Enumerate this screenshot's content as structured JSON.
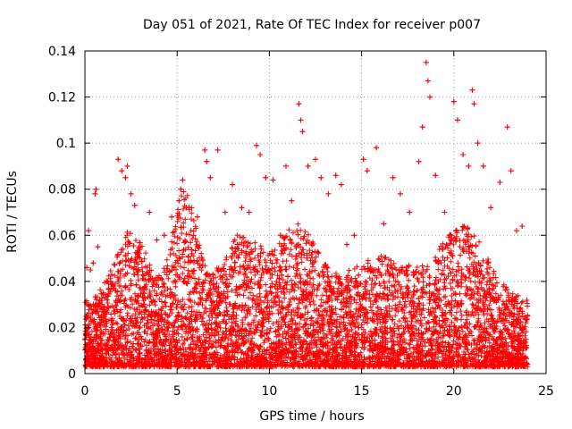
{
  "chart_data": {
    "type": "scatter",
    "title": "Day 051 of 2021, Rate Of TEC Index for receiver p007",
    "xlabel": "GPS time / hours",
    "ylabel": "ROTI / TECUs",
    "xlim": [
      0,
      25
    ],
    "ylim": [
      0,
      0.14
    ],
    "xticks": [
      0,
      5,
      10,
      15,
      20,
      25
    ],
    "xtick_labels": [
      "0",
      "5",
      "10",
      "15",
      "20",
      "25"
    ],
    "yticks": [
      0,
      0.02,
      0.04,
      0.06,
      0.08,
      0.1,
      0.12,
      0.14
    ],
    "ytick_labels": [
      "0",
      "0.02",
      "0.04",
      "0.06",
      "0.08",
      "0.1",
      "0.12",
      "0.14"
    ],
    "grid": true,
    "marker": "+",
    "series": [
      {
        "name": "ROTI",
        "color": "#ff0000",
        "points": [
          [
            0.1,
            0.046
          ],
          [
            0.2,
            0.062
          ],
          [
            0.3,
            0.045
          ],
          [
            0.45,
            0.048
          ],
          [
            0.55,
            0.078
          ],
          [
            0.6,
            0.08
          ],
          [
            0.7,
            0.055
          ],
          [
            1.0,
            0.035
          ],
          [
            1.4,
            0.04
          ],
          [
            1.8,
            0.093
          ],
          [
            2.0,
            0.088
          ],
          [
            2.2,
            0.085
          ],
          [
            2.3,
            0.09
          ],
          [
            2.5,
            0.078
          ],
          [
            2.7,
            0.073
          ],
          [
            3.0,
            0.055
          ],
          [
            3.5,
            0.07
          ],
          [
            3.9,
            0.058
          ],
          [
            4.3,
            0.06
          ],
          [
            4.7,
            0.068
          ],
          [
            5.1,
            0.075
          ],
          [
            5.2,
            0.08
          ],
          [
            5.3,
            0.084
          ],
          [
            5.5,
            0.072
          ],
          [
            5.8,
            0.052
          ],
          [
            6.1,
            0.068
          ],
          [
            6.5,
            0.097
          ],
          [
            6.6,
            0.092
          ],
          [
            6.8,
            0.085
          ],
          [
            7.2,
            0.097
          ],
          [
            7.6,
            0.07
          ],
          [
            8.0,
            0.082
          ],
          [
            8.5,
            0.072
          ],
          [
            8.9,
            0.07
          ],
          [
            9.3,
            0.099
          ],
          [
            9.5,
            0.095
          ],
          [
            9.8,
            0.085
          ],
          [
            10.2,
            0.084
          ],
          [
            10.6,
            0.06
          ],
          [
            10.9,
            0.09
          ],
          [
            11.2,
            0.075
          ],
          [
            11.6,
            0.117
          ],
          [
            11.7,
            0.11
          ],
          [
            11.8,
            0.105
          ],
          [
            12.1,
            0.09
          ],
          [
            12.5,
            0.093
          ],
          [
            12.8,
            0.085
          ],
          [
            13.2,
            0.078
          ],
          [
            13.6,
            0.086
          ],
          [
            13.9,
            0.082
          ],
          [
            14.2,
            0.056
          ],
          [
            14.6,
            0.06
          ],
          [
            15.1,
            0.093
          ],
          [
            15.3,
            0.088
          ],
          [
            15.8,
            0.098
          ],
          [
            16.2,
            0.065
          ],
          [
            16.7,
            0.085
          ],
          [
            17.1,
            0.078
          ],
          [
            17.6,
            0.07
          ],
          [
            18.1,
            0.092
          ],
          [
            18.3,
            0.107
          ],
          [
            18.5,
            0.135
          ],
          [
            18.6,
            0.127
          ],
          [
            18.7,
            0.12
          ],
          [
            19.0,
            0.086
          ],
          [
            19.5,
            0.07
          ],
          [
            20.0,
            0.118
          ],
          [
            20.2,
            0.11
          ],
          [
            20.5,
            0.095
          ],
          [
            20.8,
            0.09
          ],
          [
            21.0,
            0.123
          ],
          [
            21.1,
            0.117
          ],
          [
            21.3,
            0.1
          ],
          [
            21.6,
            0.09
          ],
          [
            22.0,
            0.072
          ],
          [
            22.5,
            0.083
          ],
          [
            22.9,
            0.107
          ],
          [
            23.1,
            0.088
          ],
          [
            23.4,
            0.062
          ],
          [
            23.7,
            0.064
          ]
        ],
        "background_band": {
          "description": "Dense baseline cloud of samples spanning the whole day",
          "x_range": [
            0,
            24
          ],
          "y_floor": 0.003,
          "y_typical_max": 0.045,
          "approx_count": 6000
        }
      }
    ]
  }
}
